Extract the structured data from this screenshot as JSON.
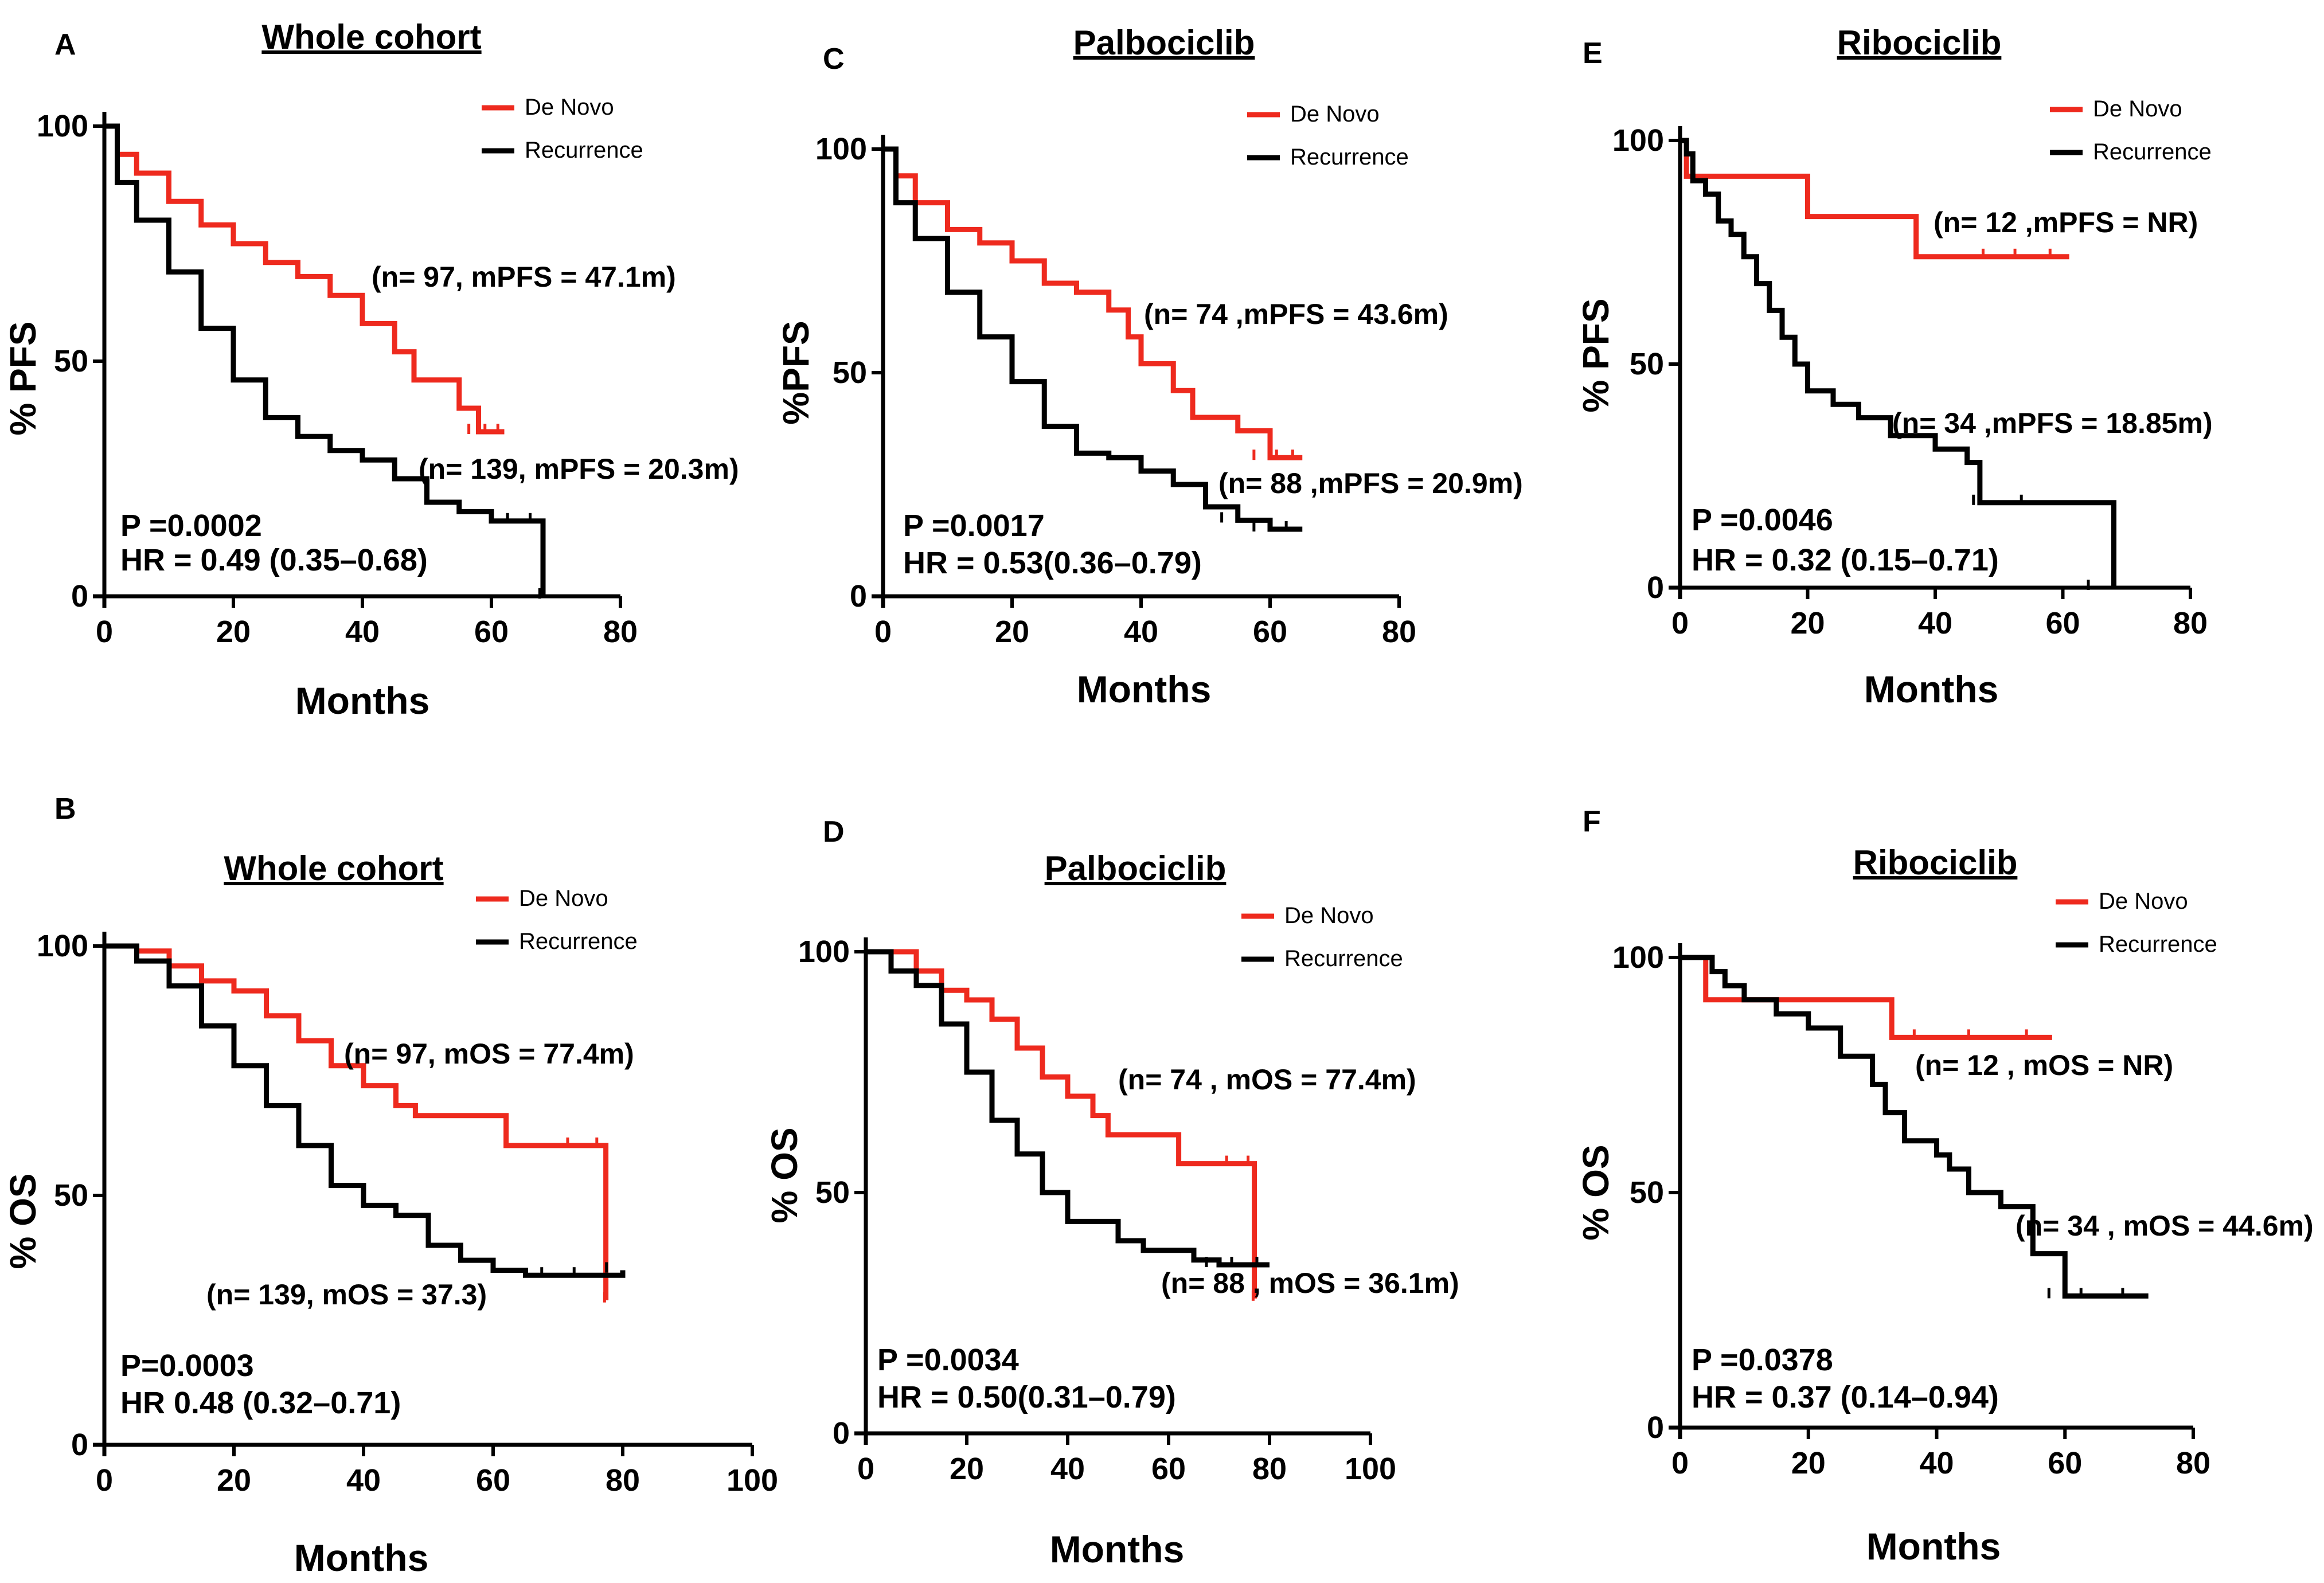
{
  "colors": {
    "de_novo": "#ee2a1e",
    "recurrence": "#000000"
  },
  "chart_data": [
    {
      "panel": "A",
      "title": "Whole cohort",
      "type": "line",
      "step": true,
      "ylabel": "% PFS",
      "xlabel": "Months",
      "xlim": [
        0,
        80
      ],
      "ylim": [
        0,
        100
      ],
      "xticks": [
        "0",
        "20",
        "40",
        "60",
        "80"
      ],
      "yticks": [
        "0",
        "50",
        "100"
      ],
      "legend": [
        "De Novo",
        "Recurrence"
      ],
      "series": [
        {
          "name": "De Novo",
          "color": "#ee2a1e",
          "x": [
            0,
            2,
            5,
            10,
            15,
            20,
            25,
            30,
            35,
            40,
            42,
            45,
            48,
            50,
            55,
            58,
            60,
            62
          ],
          "y": [
            100,
            94,
            90,
            84,
            79,
            75,
            71,
            68,
            64,
            58,
            58,
            52,
            46,
            46,
            40,
            35,
            35,
            35
          ]
        },
        {
          "name": "Recurrence",
          "color": "#000000",
          "x": [
            0,
            2,
            5,
            10,
            15,
            20,
            25,
            30,
            35,
            40,
            45,
            50,
            55,
            60,
            65,
            67,
            68
          ],
          "y": [
            100,
            88,
            80,
            69,
            57,
            46,
            38,
            34,
            31,
            29,
            25,
            20,
            18,
            16,
            16,
            16,
            0
          ]
        }
      ],
      "annotations": [
        "(n= 97, mPFS = 47.1m)",
        "(n= 139, mPFS =  20.3m)"
      ],
      "stats": [
        "P =0.0002",
        "HR = 0.49 (0.35–0.68)"
      ]
    },
    {
      "panel": "B",
      "title": "Whole cohort",
      "type": "line",
      "step": true,
      "ylabel": "% OS",
      "xlabel": "Months",
      "xlim": [
        0,
        100
      ],
      "ylim": [
        0,
        100
      ],
      "xticks": [
        "0",
        "20",
        "40",
        "60",
        "80",
        "100"
      ],
      "yticks": [
        "0",
        "50",
        "100"
      ],
      "legend": [
        "De Novo",
        "Recurrence"
      ],
      "series": [
        {
          "name": "De Novo",
          "color": "#ee2a1e",
          "x": [
            0,
            5,
            10,
            15,
            20,
            25,
            30,
            35,
            40,
            45,
            48,
            55,
            62,
            68,
            75,
            77,
            77.4
          ],
          "y": [
            100,
            99,
            96,
            93,
            91,
            86,
            81,
            76,
            72,
            68,
            66,
            66,
            60,
            60,
            60,
            60,
            29
          ]
        },
        {
          "name": "Recurrence",
          "color": "#000000",
          "x": [
            0,
            5,
            10,
            15,
            20,
            25,
            30,
            35,
            40,
            45,
            50,
            55,
            60,
            65,
            70,
            75,
            80
          ],
          "y": [
            100,
            97,
            92,
            84,
            76,
            68,
            60,
            52,
            48,
            46,
            40,
            37,
            35,
            34,
            34,
            34,
            35
          ]
        }
      ],
      "annotations": [
        "(n= 97, mOS = 77.4m)",
        "(n= 139, mOS = 37.3)"
      ],
      "stats": [
        "P=0.0003",
        "HR 0.48 (0.32–0.71)"
      ]
    },
    {
      "panel": "C",
      "title": "Palbociclib",
      "type": "line",
      "step": true,
      "ylabel": "%PFS",
      "xlabel": "Months",
      "xlim": [
        0,
        80
      ],
      "ylim": [
        0,
        100
      ],
      "xticks": [
        "0",
        "20",
        "40",
        "60",
        "80"
      ],
      "yticks": [
        "0",
        "50",
        "100"
      ],
      "legend": [
        "De Novo",
        "Recurrence"
      ],
      "series": [
        {
          "name": "De Novo",
          "color": "#ee2a1e",
          "x": [
            0,
            2,
            5,
            10,
            15,
            20,
            25,
            30,
            35,
            38,
            40,
            45,
            48,
            50,
            55,
            60,
            62,
            65
          ],
          "y": [
            100,
            94,
            88,
            82,
            79,
            75,
            70,
            68,
            64,
            58,
            52,
            46,
            40,
            40,
            37,
            31,
            31,
            31
          ]
        },
        {
          "name": "Recurrence",
          "color": "#000000",
          "x": [
            0,
            2,
            5,
            10,
            15,
            20,
            25,
            30,
            35,
            40,
            45,
            50,
            55,
            60,
            65
          ],
          "y": [
            100,
            88,
            80,
            68,
            58,
            48,
            38,
            32,
            31,
            28,
            25,
            20,
            17,
            15,
            15
          ]
        }
      ],
      "annotations": [
        "(n= 74 ,mPFS = 43.6m)",
        "(n= 88 ,mPFS = 20.9m)"
      ],
      "stats": [
        "P =0.0017",
        "HR = 0.53(0.36–0.79)"
      ]
    },
    {
      "panel": "D",
      "title": "Palbociclib",
      "type": "line",
      "step": true,
      "ylabel": "% OS",
      "xlabel": "Months",
      "xlim": [
        0,
        100
      ],
      "ylim": [
        0,
        100
      ],
      "xticks": [
        "0",
        "20",
        "40",
        "60",
        "80",
        "100"
      ],
      "yticks": [
        "0",
        "50",
        "100"
      ],
      "legend": [
        "De Novo",
        "Recurrence"
      ],
      "series": [
        {
          "name": "De Novo",
          "color": "#ee2a1e",
          "x": [
            0,
            5,
            10,
            15,
            20,
            25,
            30,
            35,
            40,
            45,
            48,
            55,
            62,
            68,
            75,
            76.5,
            77
          ],
          "y": [
            100,
            100,
            96,
            92,
            90,
            86,
            80,
            74,
            70,
            66,
            62,
            62,
            56,
            56,
            56,
            56,
            28
          ]
        },
        {
          "name": "Recurrence",
          "color": "#000000",
          "x": [
            0,
            5,
            10,
            15,
            20,
            25,
            30,
            35,
            40,
            45,
            50,
            55,
            60,
            65,
            70,
            75,
            80
          ],
          "y": [
            100,
            96,
            93,
            85,
            75,
            65,
            58,
            50,
            44,
            44,
            40,
            38,
            38,
            36,
            35,
            35,
            35
          ]
        }
      ],
      "annotations": [
        "(n= 74 , mOS = 77.4m)",
        "(n= 88 , mOS = 36.1m)"
      ],
      "stats": [
        "P =0.0034",
        "HR = 0.50(0.31–0.79)"
      ]
    },
    {
      "panel": "E",
      "title": "Ribociclib",
      "type": "line",
      "step": true,
      "ylabel": "% PFS",
      "xlabel": "Months",
      "xlim": [
        0,
        80
      ],
      "ylim": [
        0,
        100
      ],
      "xticks": [
        "0",
        "20",
        "40",
        "60",
        "80"
      ],
      "yticks": [
        "0",
        "50",
        "100"
      ],
      "legend": [
        "De Novo",
        "Recurrence"
      ],
      "series": [
        {
          "name": "De Novo",
          "color": "#ee2a1e",
          "x": [
            0,
            1,
            20,
            37,
            45,
            50,
            55,
            61
          ],
          "y": [
            100,
            92,
            83,
            74,
            74,
            74,
            74,
            74
          ]
        },
        {
          "name": "Recurrence",
          "color": "#000000",
          "x": [
            0,
            1,
            2,
            4,
            6,
            8,
            10,
            12,
            14,
            16,
            18,
            20,
            24,
            28,
            33,
            40,
            45,
            47,
            60,
            68
          ],
          "y": [
            100,
            97,
            91,
            88,
            82,
            79,
            74,
            68,
            62,
            56,
            50,
            44,
            41,
            38,
            34,
            31,
            28,
            19,
            19,
            0
          ]
        }
      ],
      "annotations": [
        "(n= 12 ,mPFS = NR)",
        "(n= 34 ,mPFS = 18.85m)"
      ],
      "stats": [
        "P =0.0046",
        "HR = 0.32 (0.15–0.71)"
      ]
    },
    {
      "panel": "F",
      "title": "Ribociclib",
      "type": "line",
      "step": true,
      "ylabel": "% OS",
      "xlabel": "Months",
      "xlim": [
        0,
        80
      ],
      "ylim": [
        0,
        100
      ],
      "xticks": [
        "0",
        "20",
        "40",
        "60",
        "80"
      ],
      "yticks": [
        "0",
        "50",
        "100"
      ],
      "legend": [
        "De Novo",
        "Recurrence"
      ],
      "series": [
        {
          "name": "De Novo",
          "color": "#ee2a1e",
          "x": [
            0,
            4,
            33,
            40,
            50,
            58
          ],
          "y": [
            100,
            91,
            83,
            83,
            83,
            83
          ]
        },
        {
          "name": "Recurrence",
          "color": "#000000",
          "x": [
            0,
            5,
            7,
            10,
            15,
            20,
            25,
            30,
            32,
            35,
            40,
            42,
            45,
            50,
            55,
            60,
            65,
            73
          ],
          "y": [
            100,
            97,
            94,
            91,
            88,
            85,
            79,
            73,
            67,
            61,
            58,
            55,
            50,
            47,
            37,
            28,
            28,
            28
          ]
        }
      ],
      "annotations": [
        "(n= 12 , mOS = NR)",
        "(n= 34 , mOS = 44.6m)"
      ],
      "stats": [
        "P =0.0378",
        "HR = 0.37 (0.14–0.94)"
      ]
    }
  ]
}
